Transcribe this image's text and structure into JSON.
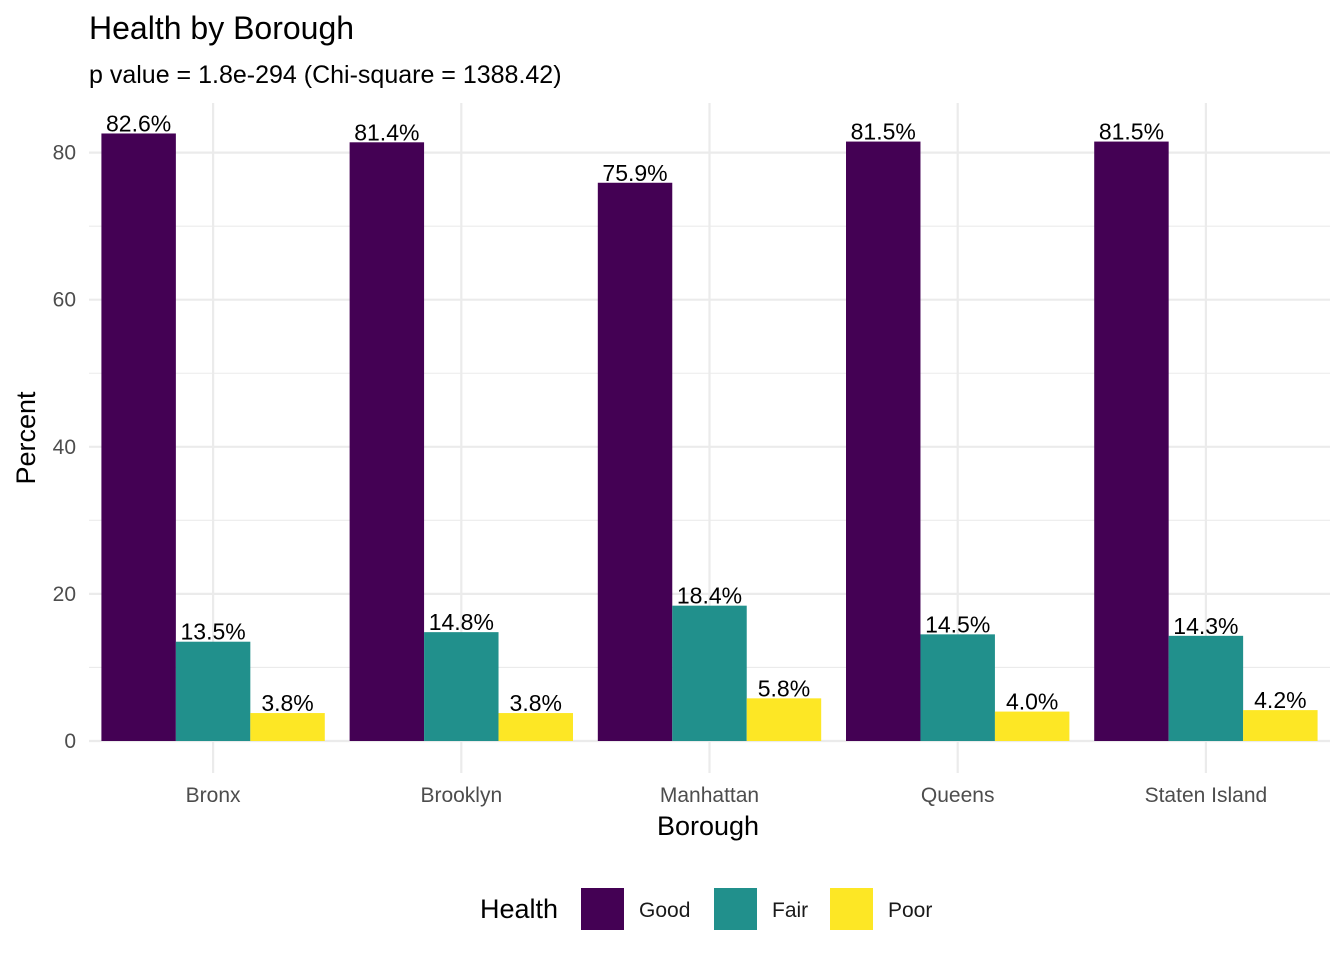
{
  "chart_data": {
    "type": "bar",
    "title": "Health by Borough",
    "subtitle": "p value = 1.8e-294 (Chi-square = 1388.42)",
    "xlabel": "Borough",
    "ylabel": "Percent",
    "categories": [
      "Bronx",
      "Brooklyn",
      "Manhattan",
      "Queens",
      "Staten Island"
    ],
    "series": [
      {
        "name": "Good",
        "color": "#440154",
        "values": [
          82.6,
          81.4,
          75.9,
          81.5,
          81.5
        ],
        "labels": [
          "82.6%",
          "81.4%",
          "75.9%",
          "81.5%",
          "81.5%"
        ]
      },
      {
        "name": "Fair",
        "color": "#21908C",
        "values": [
          13.5,
          14.8,
          18.4,
          14.5,
          14.3
        ],
        "labels": [
          "13.5%",
          "14.8%",
          "18.4%",
          "14.5%",
          "14.3%"
        ]
      },
      {
        "name": "Poor",
        "color": "#FDE725",
        "values": [
          3.8,
          3.8,
          5.8,
          4.0,
          4.2
        ],
        "labels": [
          "3.8%",
          "3.8%",
          "5.8%",
          "4.0%",
          "4.2%"
        ]
      }
    ],
    "yticks": [
      0,
      20,
      40,
      60,
      80
    ],
    "ylim": [
      0,
      86.7
    ],
    "grid": true,
    "legend": {
      "title": "Health",
      "position": "bottom"
    }
  }
}
